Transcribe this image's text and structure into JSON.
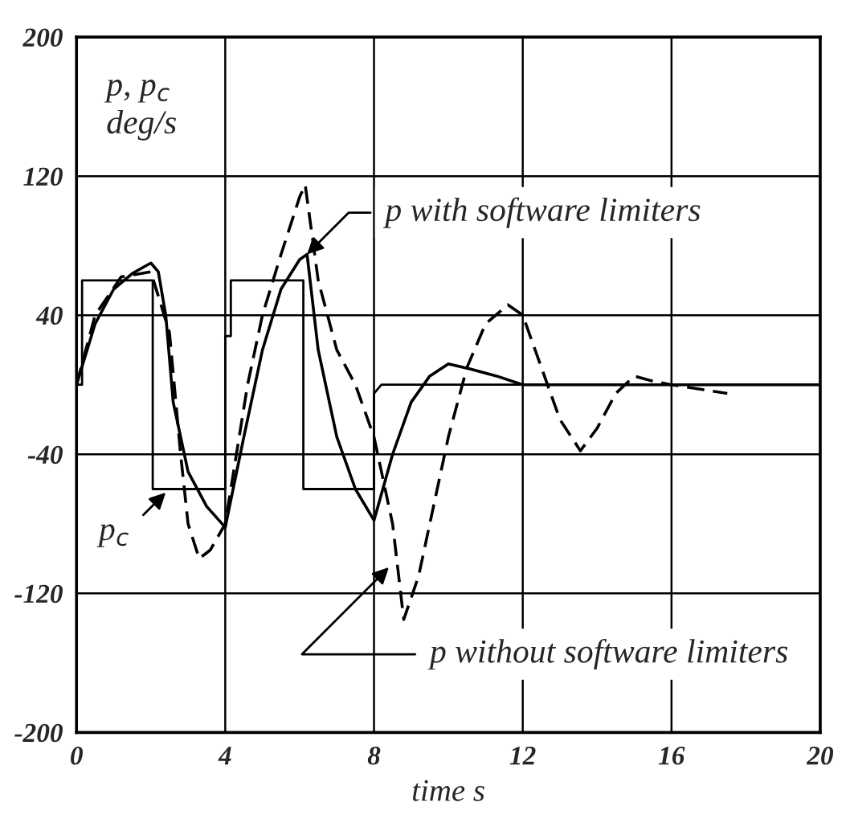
{
  "chart_data": {
    "type": "line",
    "xlabel": "time s",
    "ylabel": "p, p$_{c}$\ndeg/s",
    "xlim": [
      0,
      20
    ],
    "ylim": [
      -200,
      200
    ],
    "xticks": [
      0,
      4,
      8,
      12,
      16,
      20
    ],
    "yticks": [
      -200,
      -120,
      -40,
      40,
      120,
      200
    ],
    "grid": true,
    "legend": false,
    "marker": "none",
    "series": [
      {
        "color": "#000000",
        "line_style": "solid",
        "x": [
          0,
          0.15,
          0.15,
          2.05,
          2.05,
          4.0,
          4.0,
          4.15,
          4.15,
          6.1,
          6.1,
          8.0,
          8.0,
          8.2,
          20
        ],
        "values": [
          0,
          0,
          60,
          60,
          -60,
          -60,
          28,
          28,
          60,
          60,
          -60,
          -60,
          -5,
          0,
          0
        ]
      },
      {
        "color": "#000000",
        "line_style": "solid",
        "x": [
          0,
          0.5,
          1,
          1.5,
          2.0,
          2.2,
          2.4,
          2.6,
          3.0,
          3.5,
          4.0,
          4.5,
          5.0,
          5.5,
          6.0,
          6.2,
          6.5,
          7.0,
          7.5,
          8.0,
          8.5,
          9.0,
          9.5,
          10.0,
          10.6,
          11.3,
          12,
          14,
          16,
          20
        ],
        "values": [
          0,
          35,
          55,
          64,
          70,
          65,
          40,
          -10,
          -50,
          -70,
          -82,
          -30,
          20,
          55,
          72,
          75,
          20,
          -30,
          -60,
          -78,
          -40,
          -10,
          5,
          12,
          9,
          5,
          0,
          0,
          0,
          0
        ]
      },
      {
        "color": "#000000",
        "line_style": "dashed",
        "x": [
          0,
          0.5,
          1.2,
          2.0,
          2.5,
          2.8,
          3.0,
          3.3,
          3.6,
          4.0,
          4.3,
          4.6,
          5.0,
          5.5,
          6.0,
          6.15,
          6.5,
          7.0,
          7.5,
          8.0,
          8.5,
          8.8,
          9.2,
          9.5,
          10.0,
          10.5,
          11.0,
          11.6,
          12.0,
          12.5,
          13.0,
          13.55,
          14.0,
          14.5,
          15.0,
          15.5,
          16.0,
          17.5
        ],
        "values": [
          0,
          40,
          62,
          65,
          30,
          -40,
          -80,
          -100,
          -95,
          -80,
          -40,
          0,
          40,
          75,
          108,
          115,
          60,
          20,
          0,
          -30,
          -80,
          -135,
          -110,
          -80,
          -30,
          10,
          35,
          46,
          40,
          10,
          -20,
          -38,
          -25,
          -5,
          5,
          2,
          0,
          -5
        ]
      }
    ],
    "annotations": [
      {
        "text": "p with software limiters",
        "x": 6.2,
        "y": 75
      },
      {
        "text": "p without software limiters",
        "x": 8.4,
        "y": -105
      },
      {
        "text": "p$_{c}$",
        "x": 2.4,
        "y": -62
      }
    ]
  }
}
